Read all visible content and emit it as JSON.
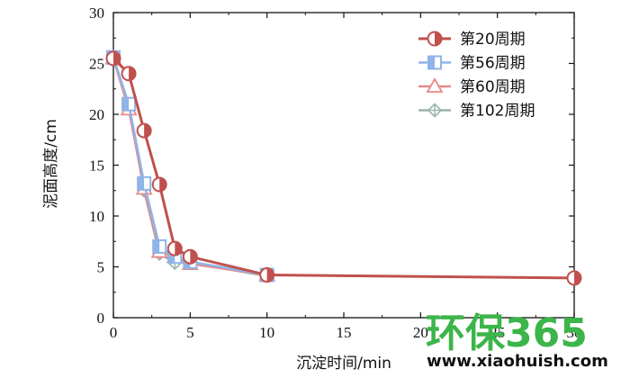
{
  "chart_data": {
    "type": "line",
    "title": "",
    "xlabel": "沉淀时间/min",
    "ylabel": "泥面高度/cm",
    "xlim": [
      0,
      30
    ],
    "ylim": [
      0,
      30
    ],
    "xticks": [
      "0",
      "5",
      "10",
      "15",
      "20",
      "25",
      "30"
    ],
    "yticks": [
      "0",
      "5",
      "10",
      "15",
      "20",
      "25",
      "30"
    ],
    "grid": false,
    "legend_position": "top-right",
    "series": [
      {
        "name": "第20周期",
        "marker": "circle",
        "color": "#c0504d",
        "x": [
          0,
          1,
          2,
          3,
          4,
          5,
          10,
          30
        ],
        "y": [
          25.5,
          24.0,
          18.4,
          13.1,
          6.8,
          6.0,
          4.2,
          3.9
        ]
      },
      {
        "name": "第56周期",
        "marker": "square",
        "color": "#8fb4e8",
        "x": [
          0,
          1,
          2,
          3,
          4,
          5,
          10
        ],
        "y": [
          25.6,
          21.0,
          13.2,
          7.0,
          6.0,
          5.5,
          4.2
        ]
      },
      {
        "name": "第60周期",
        "marker": "triangle",
        "color": "#e88a8a",
        "x": [
          0,
          1,
          2,
          3,
          4,
          5,
          10
        ],
        "y": [
          25.5,
          20.5,
          12.7,
          6.5,
          6.0,
          5.3,
          4.2
        ]
      },
      {
        "name": "第102周期",
        "marker": "diamond",
        "color": "#9bb3a8",
        "x": [
          0,
          1,
          2,
          3,
          4,
          5,
          10
        ],
        "y": [
          25.5,
          20.8,
          12.5,
          6.3,
          5.4,
          5.4,
          4.1
        ]
      }
    ]
  },
  "watermark": {
    "logo_text": "环保365",
    "url": "www.xiaohuish.com",
    "colors": {
      "green": "#3cb54a",
      "dark": "#111111"
    }
  }
}
